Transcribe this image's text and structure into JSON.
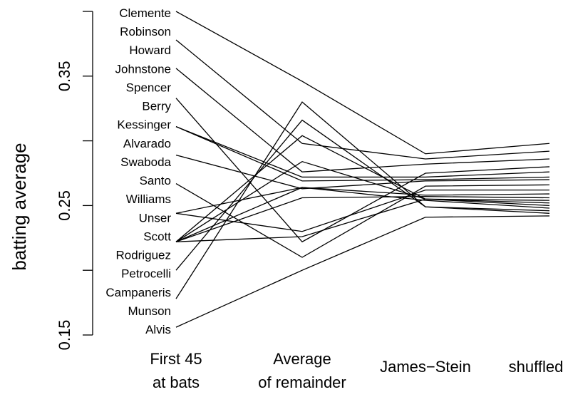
{
  "chart_data": {
    "type": "line",
    "ylabel": "batting average",
    "ylim": [
      0.15,
      0.4
    ],
    "yticks": [
      "0.15",
      "0.25",
      "0.35"
    ],
    "yticks_values": [
      0.15,
      0.25,
      0.35
    ],
    "categories": [
      [
        "First 45",
        "at bats"
      ],
      [
        "Average",
        "of remainder"
      ],
      [
        "James−Stein"
      ],
      [
        "shuffled"
      ]
    ],
    "series": [
      {
        "name": "Clemente",
        "values": [
          0.4,
          0.346,
          0.29,
          0.298
        ]
      },
      {
        "name": "Robinson",
        "values": [
          0.378,
          0.298,
          0.286,
          0.292
        ]
      },
      {
        "name": "Howard",
        "values": [
          0.356,
          0.276,
          0.282,
          0.286
        ]
      },
      {
        "name": "Johnstone",
        "values": [
          0.333,
          0.222,
          0.275,
          0.28
        ]
      },
      {
        "name": "Spencer",
        "values": [
          0.311,
          0.272,
          0.272,
          0.276
        ]
      },
      {
        "name": "Berry",
        "values": [
          0.311,
          0.269,
          0.27,
          0.272
        ]
      },
      {
        "name": "Kessinger",
        "values": [
          0.289,
          0.263,
          0.269,
          0.27
        ]
      },
      {
        "name": "Alvarado",
        "values": [
          0.267,
          0.21,
          0.265,
          0.266
        ]
      },
      {
        "name": "Swaboda",
        "values": [
          0.244,
          0.23,
          0.262,
          0.262
        ]
      },
      {
        "name": "Santo",
        "values": [
          0.244,
          0.264,
          0.258,
          0.259
        ]
      },
      {
        "name": "Williams",
        "values": [
          0.222,
          0.256,
          0.257,
          0.256
        ]
      },
      {
        "name": "Unser",
        "values": [
          0.222,
          0.304,
          0.255,
          0.254
        ]
      },
      {
        "name": "Scott",
        "values": [
          0.222,
          0.226,
          0.255,
          0.252
        ]
      },
      {
        "name": "Rodriguez",
        "values": [
          0.222,
          0.284,
          0.255,
          0.25
        ]
      },
      {
        "name": "Petrocelli",
        "values": [
          0.222,
          0.264,
          0.254,
          0.248
        ]
      },
      {
        "name": "Campaneris",
        "values": [
          0.2,
          0.316,
          0.249,
          0.246
        ]
      },
      {
        "name": "Munson",
        "values": [
          0.178,
          0.33,
          0.249,
          0.244
        ]
      },
      {
        "name": "Alvis",
        "values": [
          0.156,
          0.2,
          0.241,
          0.242
        ]
      }
    ]
  }
}
